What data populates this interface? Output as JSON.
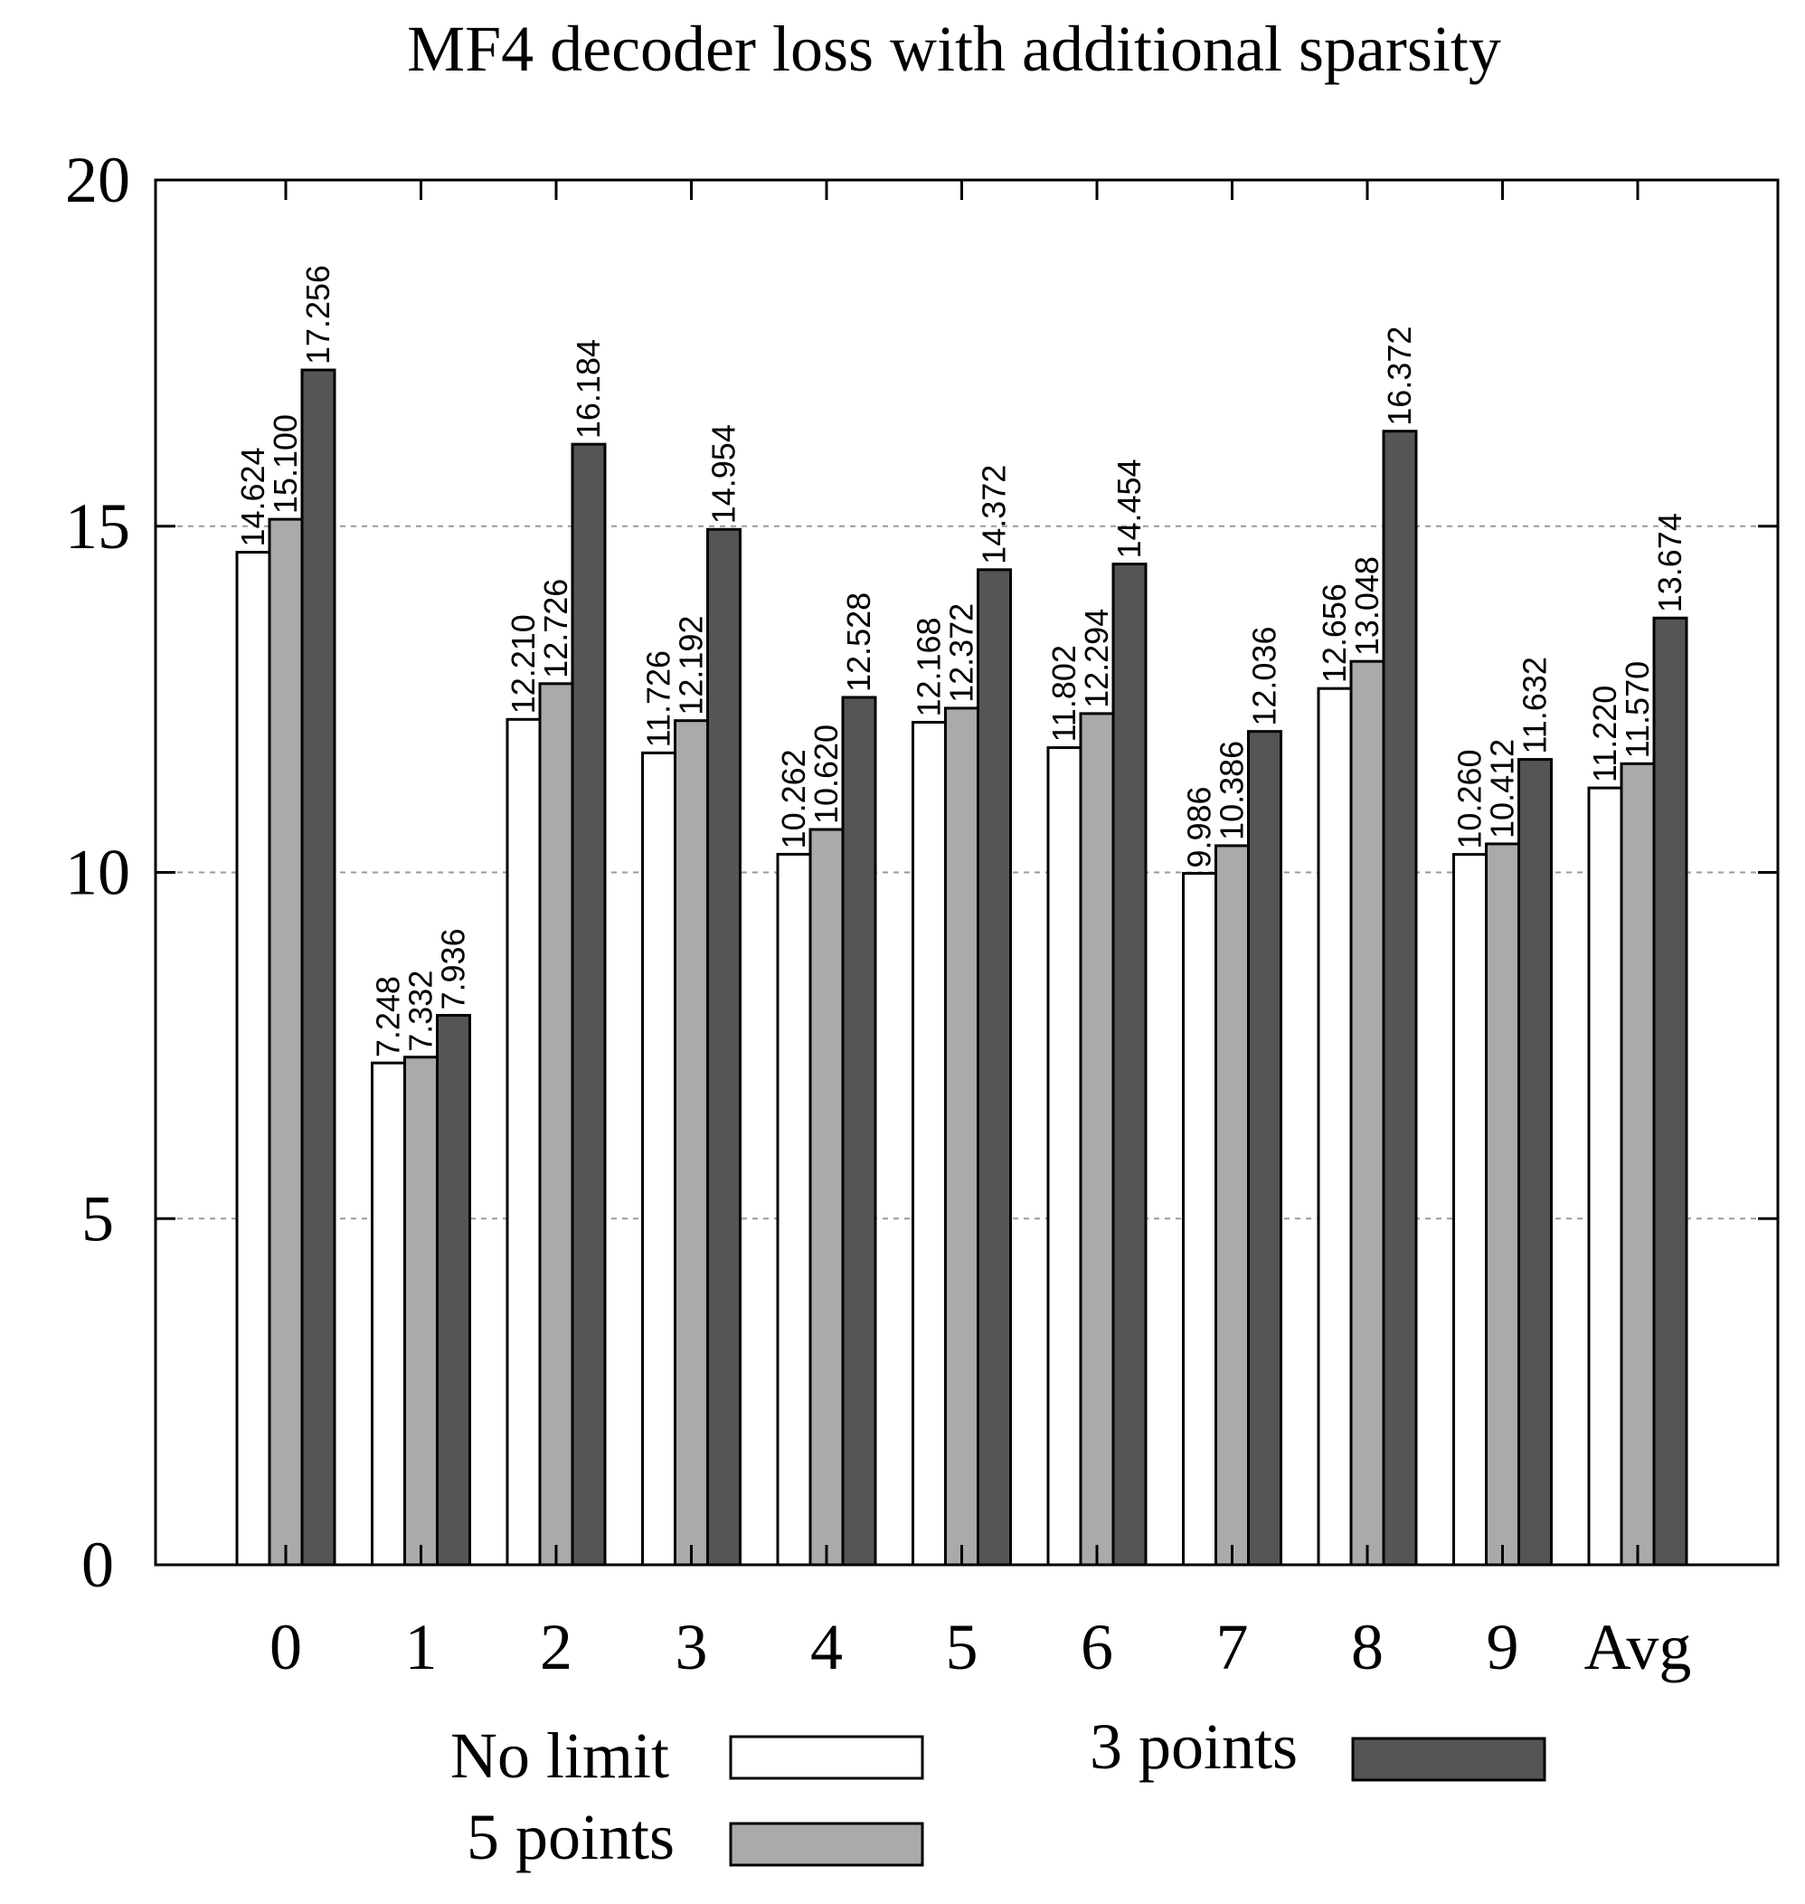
{
  "chart_data": {
    "type": "bar",
    "title": "MF4 decoder loss with additional sparsity",
    "xlabel": "",
    "ylabel": "",
    "ylim": [
      0,
      20
    ],
    "yticks": [
      0,
      5,
      10,
      15,
      20
    ],
    "grid": "horizontal dashed at 5, 10, 15",
    "categories": [
      "0",
      "1",
      "2",
      "3",
      "4",
      "5",
      "6",
      "7",
      "8",
      "9",
      "Avg"
    ],
    "series": [
      {
        "name": "No limit",
        "color": "#ffffff",
        "values": [
          14.624,
          7.248,
          12.21,
          11.726,
          10.262,
          12.168,
          11.802,
          9.986,
          12.656,
          10.26,
          11.22
        ],
        "labels": [
          "14.624",
          "7.248",
          "12.210",
          "11.726",
          "10.262",
          "12.168",
          "11.802",
          "9.986",
          "12.656",
          "10.260",
          "11.220"
        ]
      },
      {
        "name": "5 points",
        "color": "#aaaaaa",
        "values": [
          15.1,
          7.332,
          12.726,
          12.192,
          10.62,
          12.372,
          12.294,
          10.386,
          13.048,
          10.412,
          11.57
        ],
        "labels": [
          "15.100",
          "7.332",
          "12.726",
          "12.192",
          "10.620",
          "12.372",
          "12.294",
          "10.386",
          "13.048",
          "10.412",
          "11.570"
        ]
      },
      {
        "name": "3 points",
        "color": "#555555",
        "values": [
          17.256,
          7.936,
          16.184,
          14.954,
          12.528,
          14.372,
          14.454,
          12.036,
          16.372,
          11.632,
          13.674
        ],
        "labels": [
          "17.256",
          "7.936",
          "16.184",
          "14.954",
          "12.528",
          "14.372",
          "14.454",
          "12.036",
          "16.372",
          "11.632",
          "13.674"
        ]
      }
    ],
    "legend_position": "bottom"
  }
}
